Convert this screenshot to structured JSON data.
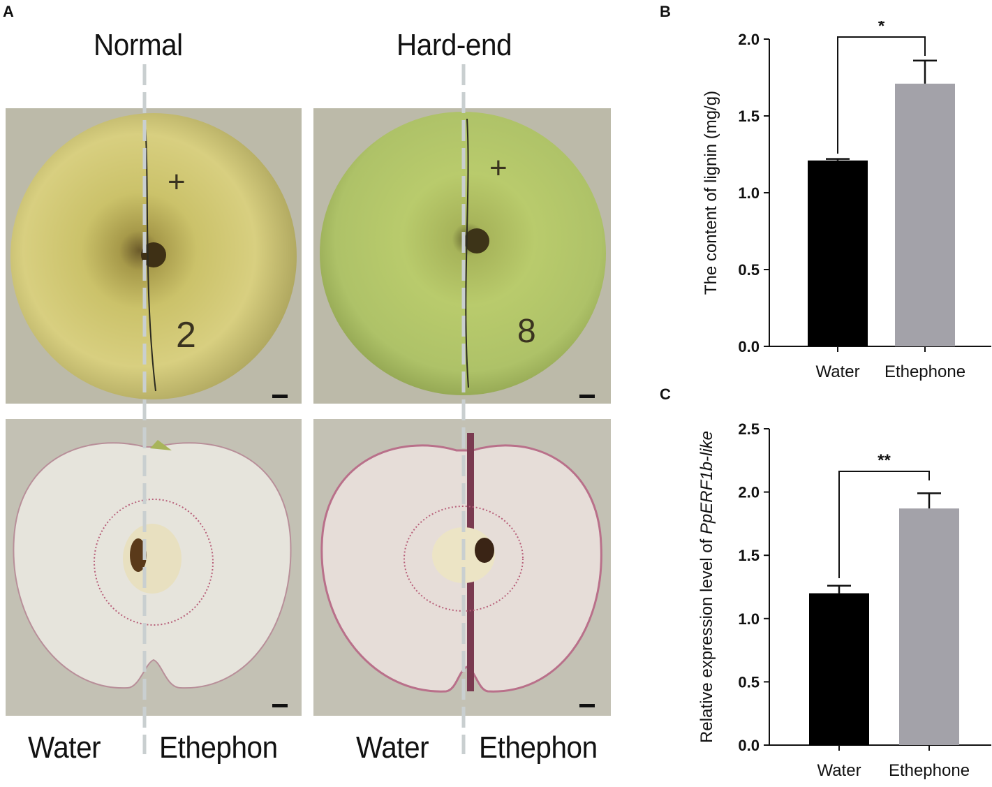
{
  "panels": {
    "A": {
      "letter": "A",
      "column_titles": [
        "Normal",
        "Hard-end"
      ],
      "bottom_labels": [
        "Water",
        "Ethephon",
        "Water",
        "Ethephon"
      ],
      "whole_fruit_marks": [
        {
          "top": "+",
          "bottom": "2"
        },
        {
          "top": "+",
          "bottom": "8"
        }
      ]
    },
    "B": {
      "letter": "B"
    },
    "C": {
      "letter": "C"
    }
  },
  "colors": {
    "photo_background": "#b9b7a7",
    "water_bar": "#000000",
    "ethephone_bar": "#a3a2a9",
    "divider": "#c9cfd0"
  },
  "chart_data": [
    {
      "panel": "B",
      "type": "bar",
      "categories": [
        "Water",
        "Ethephone"
      ],
      "values": [
        1.21,
        1.71
      ],
      "errors": [
        0.01,
        0.15
      ],
      "ylabel": "The content of lignin (mg/g)",
      "ylim": [
        0,
        2.0
      ],
      "yticks": [
        "0.0",
        "0.5",
        "1.0",
        "1.5",
        "2.0"
      ],
      "significance": "*"
    },
    {
      "panel": "C",
      "type": "bar",
      "categories": [
        "Water",
        "Ethephone"
      ],
      "values": [
        1.2,
        1.87
      ],
      "errors": [
        0.06,
        0.12
      ],
      "ylabel_prefix": "Relative expression level of ",
      "ylabel_gene": "PpERF1b-like",
      "ylim": [
        0,
        2.5
      ],
      "yticks": [
        "0.0",
        "0.5",
        "1.0",
        "1.5",
        "2.0",
        "2.5"
      ],
      "significance": "**"
    }
  ]
}
